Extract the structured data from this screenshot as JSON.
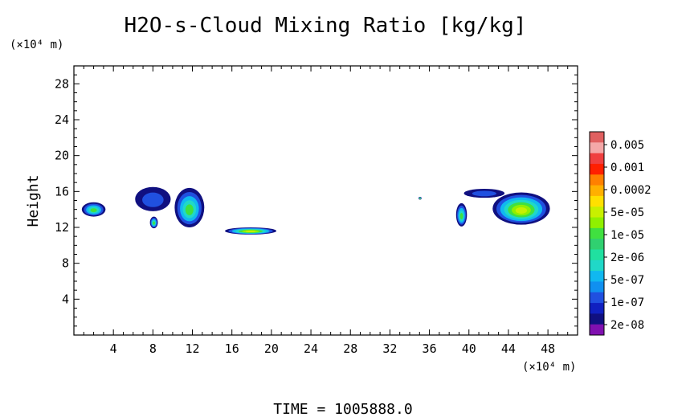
{
  "chart_data": {
    "type": "heatmap",
    "title": "H2O-s-Cloud Mixing Ratio [kg/kg]",
    "ylabel": "Height",
    "y_unit": "(×10⁴ m)",
    "x_unit": "(×10⁴ m)",
    "xlim": [
      0,
      51
    ],
    "ylim": [
      0,
      30
    ],
    "x_ticks": [
      4,
      8,
      12,
      16,
      20,
      24,
      28,
      32,
      36,
      40,
      44,
      48
    ],
    "y_ticks": [
      4,
      8,
      12,
      16,
      20,
      24,
      28
    ],
    "colorbar": {
      "labels": [
        "0.005",
        "0.001",
        "0.0002",
        "5e-05",
        "1e-05",
        "2e-06",
        "5e-07",
        "1e-07",
        "2e-08"
      ],
      "colors": [
        "#e06060",
        "#f4a8a8",
        "#f04040",
        "#ff2000",
        "#ff8000",
        "#ffb000",
        "#ffe000",
        "#c8f000",
        "#90f000",
        "#40e040",
        "#30d070",
        "#20e0a0",
        "#20d8c8",
        "#10b8f0",
        "#1090f0",
        "#2050e0",
        "#1020c0",
        "#101080",
        "#8010b0"
      ]
    },
    "cloud_regions": [
      {
        "x_range": [
          0.8,
          3.2
        ],
        "y_range": [
          13.2,
          14.8
        ],
        "level": "2e-06"
      },
      {
        "x_range": [
          6.2,
          9.8
        ],
        "y_range": [
          13.8,
          16.5
        ],
        "level": "1e-07"
      },
      {
        "x_range": [
          7.7,
          8.5
        ],
        "y_range": [
          11.9,
          13.2
        ],
        "level": "1e-05"
      },
      {
        "x_range": [
          10.2,
          13.2
        ],
        "y_range": [
          12.0,
          16.4
        ],
        "level": "1e-05"
      },
      {
        "x_range": [
          15.3,
          20.5
        ],
        "y_range": [
          11.2,
          12.0
        ],
        "level": "5e-05"
      },
      {
        "x_range": [
          34.9,
          35.2
        ],
        "y_range": [
          15.1,
          15.4
        ],
        "level": "2e-08"
      },
      {
        "x_range": [
          38.7,
          39.8
        ],
        "y_range": [
          12.1,
          14.7
        ],
        "level": "1e-05"
      },
      {
        "x_range": [
          39.5,
          43.6
        ],
        "y_range": [
          15.3,
          16.3
        ],
        "level": "1e-07"
      },
      {
        "x_range": [
          42.4,
          48.2
        ],
        "y_range": [
          12.3,
          15.9
        ],
        "level": "5e-05"
      }
    ],
    "footer": "TIME = 1005888.0"
  }
}
